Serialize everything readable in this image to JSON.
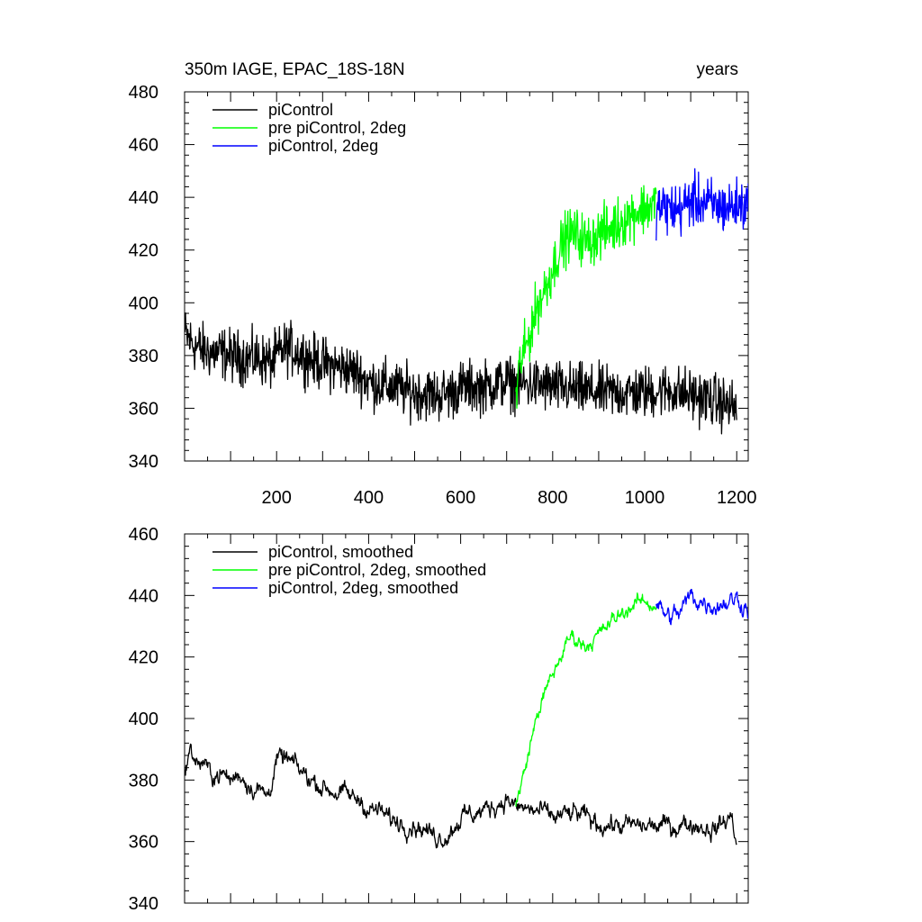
{
  "chart_data": [
    {
      "type": "line",
      "title": "350m IAGE, EPAC_18S-18N",
      "title_right": "years",
      "xlim": [
        0,
        1225
      ],
      "ylim": [
        340,
        480
      ],
      "xticks": [
        200,
        400,
        600,
        800,
        1000,
        1200
      ],
      "yticks": [
        340,
        360,
        380,
        400,
        420,
        440,
        460,
        480
      ],
      "legend_position": "top-left",
      "series": [
        {
          "name": "piControl",
          "color": "#000000",
          "x": [
            1,
            20,
            40,
            60,
            80,
            100,
            130,
            160,
            190,
            200,
            220,
            250,
            280,
            300,
            350,
            380,
            400,
            450,
            500,
            550,
            580,
            600,
            650,
            700,
            720,
            760,
            800,
            850,
            900,
            950,
            1000,
            1050,
            1100,
            1150,
            1200
          ],
          "y": [
            388,
            384,
            382,
            381,
            381,
            380,
            379,
            379,
            377,
            380,
            383,
            381,
            378,
            377,
            375,
            373,
            370,
            368,
            366,
            365,
            366,
            368,
            368,
            370,
            369,
            369,
            368,
            367,
            366,
            366,
            366,
            367,
            365,
            363,
            360
          ],
          "noise": 7
        },
        {
          "name": "pre piControl, 2deg",
          "color": "#00ff00",
          "x": [
            720,
            725,
            730,
            740,
            750,
            760,
            770,
            780,
            790,
            800,
            810,
            820,
            830,
            840,
            850,
            875,
            900,
            925,
            950,
            975,
            1000,
            1025
          ],
          "y": [
            362,
            372,
            378,
            382,
            388,
            395,
            400,
            404,
            408,
            413,
            418,
            422,
            425,
            426,
            426,
            423,
            426,
            428,
            431,
            434,
            436,
            437
          ],
          "noise": 7
        },
        {
          "name": "piControl, 2deg",
          "color": "#0000ff",
          "x": [
            1025,
            1050,
            1075,
            1100,
            1125,
            1150,
            1175,
            1200,
            1225
          ],
          "y": [
            436,
            436,
            435,
            439,
            438,
            437,
            436,
            437,
            437
          ],
          "noise": 7
        }
      ]
    },
    {
      "type": "line",
      "title": "",
      "xlim": [
        0,
        1225
      ],
      "ylim": [
        340,
        460
      ],
      "xticks": [
        200,
        400,
        600,
        800,
        1000,
        1200
      ],
      "xticklabels": [],
      "yticks": [
        340,
        360,
        380,
        400,
        420,
        440,
        460
      ],
      "legend_position": "top-left",
      "series": [
        {
          "name": "piControl, smoothed",
          "color": "#000000",
          "x": [
            1,
            10,
            20,
            30,
            40,
            50,
            60,
            80,
            100,
            120,
            140,
            160,
            180,
            200,
            220,
            250,
            300,
            350,
            390,
            400,
            420,
            450,
            500,
            540,
            570,
            600,
            650,
            700,
            720,
            760,
            800,
            850,
            900,
            950,
            1000,
            1050,
            1100,
            1150,
            1190,
            1200
          ],
          "y": [
            385,
            389,
            388,
            385,
            386,
            383,
            382,
            382,
            380,
            382,
            379,
            377,
            375,
            386,
            387,
            383,
            378,
            375,
            373,
            370,
            370,
            367,
            366,
            362,
            362,
            368,
            370,
            374,
            371,
            370,
            368,
            369,
            366,
            365,
            365,
            365,
            366,
            364,
            368,
            360
          ],
          "noise": 1.5
        },
        {
          "name": "pre piControl, 2deg, smoothed",
          "color": "#00ff00",
          "x": [
            720,
            730,
            740,
            750,
            760,
            770,
            780,
            800,
            820,
            840,
            850,
            870,
            900,
            925,
            950,
            975,
            1000,
            1025
          ],
          "y": [
            371,
            378,
            383,
            391,
            397,
            403,
            407,
            414,
            421,
            427,
            426,
            424,
            427,
            431,
            434,
            437,
            438,
            437
          ],
          "noise": 1.2
        },
        {
          "name": "piControl, 2deg, smoothed",
          "color": "#0000ff",
          "x": [
            1025,
            1050,
            1075,
            1100,
            1125,
            1150,
            1175,
            1200,
            1225
          ],
          "y": [
            437,
            433,
            434,
            440,
            438,
            437,
            438,
            439,
            436
          ],
          "noise": 1.5
        }
      ]
    }
  ]
}
